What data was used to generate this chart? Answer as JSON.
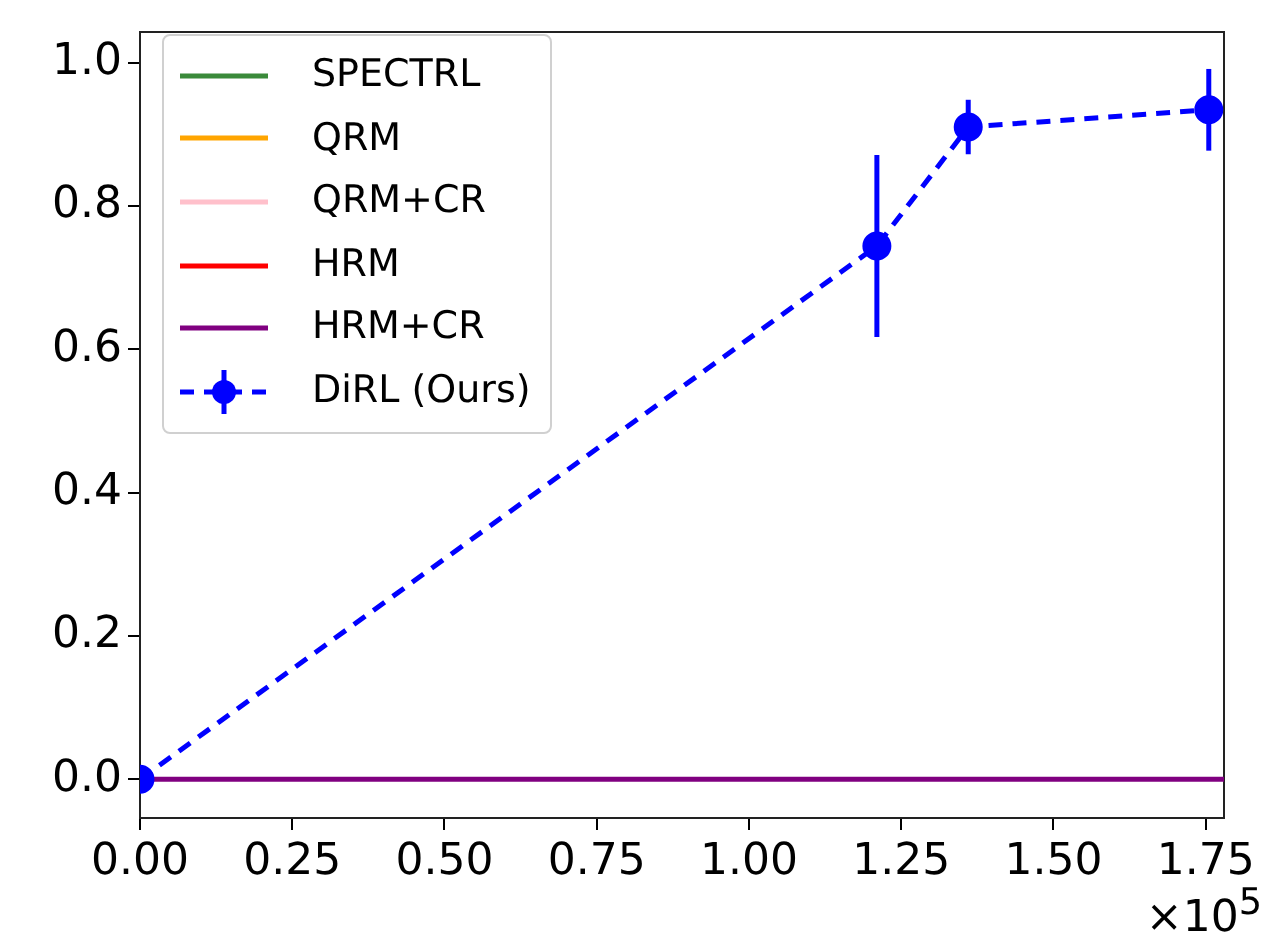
{
  "chart_data": {
    "type": "line",
    "series": [
      {
        "name": "SPECTRL",
        "color": "#3a8a3a"
      },
      {
        "name": "QRM",
        "color": "#ffa500"
      },
      {
        "name": "QRM+CR",
        "color": "#ffc0cb"
      },
      {
        "name": "HRM",
        "color": "#ff0000"
      },
      {
        "name": "HRM+CR",
        "color": "#800080",
        "x": [
          0,
          1.78
        ],
        "values": [
          0,
          0
        ]
      },
      {
        "name": "DiRL (Ours)",
        "color": "#0000ff",
        "x": [
          0,
          1.21,
          1.36,
          1.755
        ],
        "values": [
          0,
          0.744,
          0.91,
          0.934
        ],
        "errors": [
          null,
          0.127,
          0.038,
          0.057
        ],
        "marker": "circle",
        "line_style": "dashed"
      }
    ],
    "xlim": [
      0,
      1.78
    ],
    "ylim": [
      -0.054,
      1.042
    ],
    "xticks": [
      {
        "value": 0,
        "label": "0.00"
      },
      {
        "value": 0.25,
        "label": "0.25"
      },
      {
        "value": 0.5,
        "label": "0.50"
      },
      {
        "value": 0.75,
        "label": "0.75"
      },
      {
        "value": 1,
        "label": "1.00"
      },
      {
        "value": 1.25,
        "label": "1.25"
      },
      {
        "value": 1.5,
        "label": "1.50"
      },
      {
        "value": 1.75,
        "label": "1.75"
      }
    ],
    "yticks": [
      {
        "value": 0,
        "label": "0.0"
      },
      {
        "value": 0.2,
        "label": "0.2"
      },
      {
        "value": 0.4,
        "label": "0.4"
      },
      {
        "value": 0.6,
        "label": "0.6"
      },
      {
        "value": 0.8,
        "label": "0.8"
      },
      {
        "value": 1,
        "label": "1.0"
      }
    ],
    "annotations": [
      "×10$^{5}$"
    ],
    "legend": "top left",
    "grid": false,
    "marker": "none",
    "line_style": "solid"
  }
}
